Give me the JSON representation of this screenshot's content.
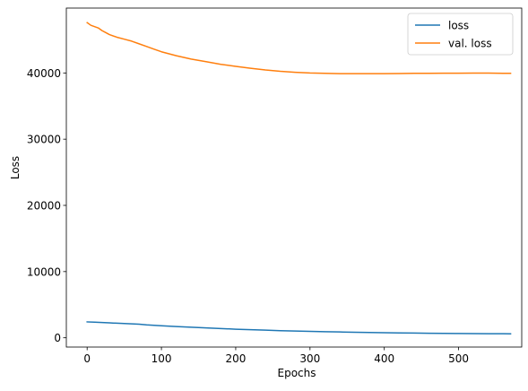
{
  "chart_data": {
    "type": "line",
    "title": "",
    "xlabel": "Epochs",
    "ylabel": "Loss",
    "xlim": [
      -28,
      585
    ],
    "ylim": [
      -1400,
      49800
    ],
    "x_ticks": [
      0,
      100,
      200,
      300,
      400,
      500
    ],
    "y_ticks": [
      0,
      10000,
      20000,
      30000,
      40000
    ],
    "grid": false,
    "legend_position": "top-right",
    "series": [
      {
        "name": "loss",
        "color": "#1f77b4",
        "x": [
          0,
          10,
          20,
          30,
          40,
          50,
          60,
          70,
          80,
          90,
          100,
          120,
          140,
          160,
          180,
          200,
          220,
          240,
          260,
          280,
          300,
          320,
          340,
          360,
          380,
          400,
          420,
          440,
          460,
          480,
          500,
          520,
          540,
          560,
          570
        ],
        "y": [
          2400,
          2350,
          2300,
          2250,
          2200,
          2150,
          2100,
          2050,
          1950,
          1880,
          1820,
          1700,
          1600,
          1500,
          1400,
          1300,
          1220,
          1150,
          1080,
          1020,
          970,
          920,
          880,
          840,
          800,
          770,
          740,
          710,
          690,
          670,
          650,
          630,
          620,
          610,
          600
        ]
      },
      {
        "name": "val. loss",
        "color": "#ff7f0e",
        "x": [
          0,
          5,
          10,
          15,
          20,
          25,
          30,
          40,
          50,
          60,
          70,
          80,
          90,
          100,
          120,
          140,
          160,
          180,
          200,
          220,
          240,
          260,
          280,
          300,
          320,
          340,
          360,
          380,
          400,
          420,
          440,
          460,
          480,
          500,
          520,
          540,
          560,
          570
        ],
        "y": [
          47600,
          47200,
          47000,
          46800,
          46400,
          46100,
          45800,
          45400,
          45100,
          44800,
          44400,
          44000,
          43600,
          43200,
          42600,
          42100,
          41700,
          41300,
          41000,
          40700,
          40450,
          40250,
          40100,
          40000,
          39950,
          39900,
          39900,
          39900,
          39900,
          39920,
          39940,
          39950,
          39960,
          39970,
          39980,
          39980,
          39950,
          39950
        ]
      }
    ]
  }
}
